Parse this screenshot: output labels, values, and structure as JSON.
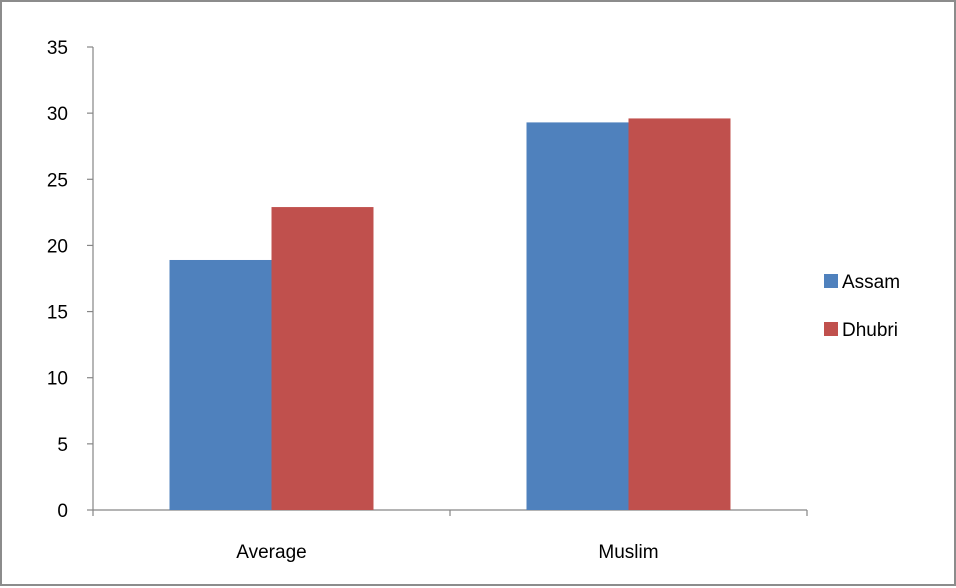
{
  "chart_data": {
    "type": "bar",
    "categories": [
      "Average",
      "Muslim"
    ],
    "series": [
      {
        "name": "Assam",
        "values": [
          18.9,
          29.3
        ],
        "color": "#4f81bd"
      },
      {
        "name": "Dhubri",
        "values": [
          22.9,
          29.6
        ],
        "color": "#c0504d"
      }
    ],
    "title": "",
    "xlabel": "",
    "ylabel": "",
    "ylim": [
      0,
      35
    ],
    "y_ticks": [
      "0",
      "5",
      "10",
      "15",
      "20",
      "25",
      "30",
      "35"
    ],
    "grid": false,
    "legend_position": "right"
  }
}
